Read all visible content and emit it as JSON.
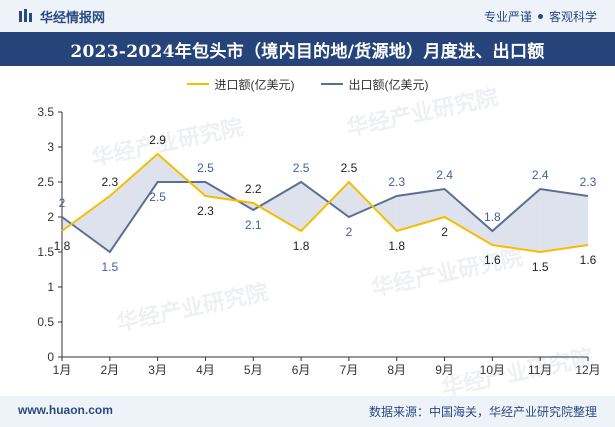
{
  "header": {
    "brand": "华经情报网",
    "slogan_left": "专业严谨",
    "slogan_right": "客观科学"
  },
  "title": "2023-2024年包头市（境内目的地/货源地）月度进、出口额",
  "watermark": "华经产业研究院",
  "footer": {
    "website": "www.huaon.com",
    "source": "数据来源：中国海关，华经产业研究院整理"
  },
  "colors": {
    "import": "#f5be00",
    "export": "#5b6f94",
    "fill": "#c3cbdc",
    "title_bg": "#27447a"
  },
  "chart_data": {
    "type": "line",
    "categories": [
      "1月",
      "2月",
      "3月",
      "4月",
      "5月",
      "6月",
      "7月",
      "8月",
      "9月",
      "10月",
      "11月",
      "12月"
    ],
    "series": [
      {
        "name": "进口额(亿美元)",
        "values": [
          1.8,
          2.3,
          2.9,
          2.3,
          2.2,
          1.8,
          2.5,
          1.8,
          2.0,
          1.6,
          1.5,
          1.6
        ]
      },
      {
        "name": "出口额(亿美元)",
        "values": [
          2.0,
          1.5,
          2.5,
          2.5,
          2.1,
          2.5,
          2.0,
          2.3,
          2.4,
          1.8,
          2.4,
          2.3
        ]
      }
    ],
    "ylim": [
      0,
      3.5
    ],
    "yticks": [
      "0",
      "0.5",
      "1",
      "1.5",
      "2",
      "2.5",
      "3",
      "3.5"
    ],
    "import_labels": [
      "1.8",
      "2.3",
      "2.9",
      "2.3",
      "2.2",
      "1.8",
      "2.5",
      "1.8",
      "2",
      "1.6",
      "1.5",
      "1.6"
    ],
    "export_labels": [
      "2",
      "1.5",
      "2.5",
      "2.5",
      "2.1",
      "2.5",
      "2",
      "2.3",
      "2.4",
      "1.8",
      "2.4",
      "2.3"
    ],
    "legend": "top-center",
    "grid": false
  }
}
